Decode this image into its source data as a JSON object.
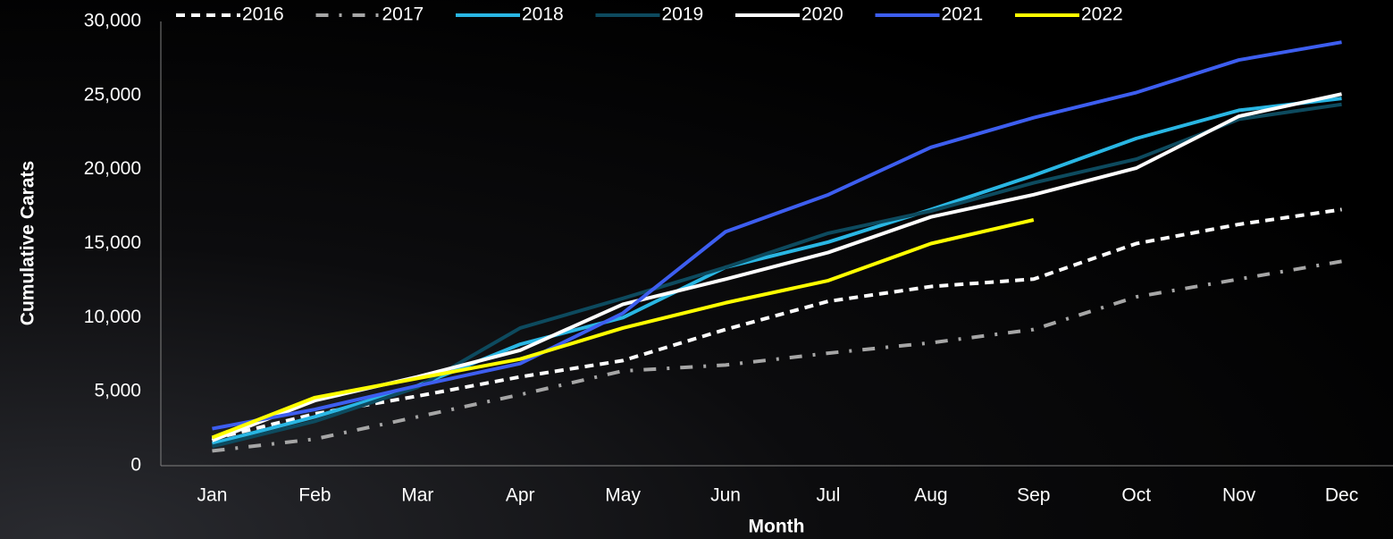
{
  "chart_data": {
    "type": "line",
    "x_label": "Month",
    "y_label": "Cumulative Carats",
    "categories": [
      "Jan",
      "Feb",
      "Mar",
      "Apr",
      "May",
      "Jun",
      "Jul",
      "Aug",
      "Sep",
      "Oct",
      "Nov",
      "Dec"
    ],
    "ylim": [
      0,
      30000
    ],
    "yticks": [
      0,
      {
        "value": 5000,
        "label": "5,000"
      },
      {
        "value": 10000,
        "label": "10,000"
      },
      {
        "value": 15000,
        "label": "15,000"
      },
      {
        "value": 20000,
        "label": "20,000"
      },
      {
        "value": 25000,
        "label": "25,000"
      },
      {
        "value": 30000,
        "label": "30,000"
      }
    ],
    "grid": false,
    "legend": "top",
    "series": [
      {
        "name": "2016",
        "color": "#ffffff",
        "dash": "dashed",
        "values": [
          1800,
          3500,
          4700,
          6000,
          7100,
          9200,
          11100,
          12100,
          12600,
          15000,
          16300,
          17300
        ]
      },
      {
        "name": "2017",
        "color": "#a6a6a6",
        "dash": "dashdot",
        "values": [
          1000,
          1800,
          3300,
          4800,
          6400,
          6800,
          7600,
          8300,
          9200,
          11400,
          12600,
          13800
        ]
      },
      {
        "name": "2018",
        "color": "#29b6e3",
        "dash": "solid",
        "values": [
          1500,
          3300,
          5400,
          8200,
          10000,
          13400,
          15100,
          17300,
          19600,
          22100,
          24000,
          24800
        ]
      },
      {
        "name": "2019",
        "color": "#0d4a5e",
        "dash": "solid",
        "values": [
          1300,
          3000,
          5300,
          9300,
          11300,
          13400,
          15700,
          17200,
          19100,
          20700,
          23400,
          24400
        ]
      },
      {
        "name": "2020",
        "color": "#ffffff",
        "dash": "solid",
        "values": [
          1700,
          4400,
          6000,
          7800,
          10900,
          12600,
          14400,
          16800,
          18300,
          20100,
          23600,
          25100
        ]
      },
      {
        "name": "2021",
        "color": "#3d5ef0",
        "dash": "solid",
        "values": [
          2500,
          3800,
          5400,
          6900,
          10300,
          15800,
          18300,
          21500,
          23500,
          25200,
          27400,
          28600
        ]
      },
      {
        "name": "2022",
        "color": "#ffff00",
        "dash": "solid",
        "values": [
          1900,
          4600,
          5900,
          7200,
          9300,
          11000,
          12500,
          15000,
          16600,
          null,
          null,
          null
        ]
      }
    ]
  }
}
